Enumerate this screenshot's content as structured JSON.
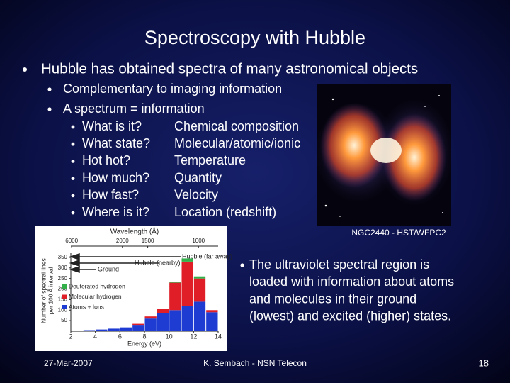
{
  "title": "Spectroscopy with Hubble",
  "bullet": "Hubble has obtained spectra of many astronomical objects",
  "sub_bullets": [
    "Complementary to imaging information",
    "A spectrum = information"
  ],
  "questions": [
    {
      "q": "What is it?",
      "a": "Chemical composition"
    },
    {
      "q": "What state?",
      "a": "Molecular/atomic/ionic"
    },
    {
      "q": "Hot hot?",
      "a": "Temperature"
    },
    {
      "q": "How much?",
      "a": "Quantity"
    },
    {
      "q": "How fast?",
      "a": "Velocity"
    },
    {
      "q": "Where is it?",
      "a": "Location (redshift)"
    }
  ],
  "image_caption": "NGC2440 - HST/WFPC2",
  "side_note": [
    "The ultraviolet spectral region is",
    "loaded with information about atoms",
    "and molecules in their ground",
    "(lowest) and excited (higher) states."
  ],
  "footer": {
    "date": "27-Mar-2007",
    "author": "K. Sembach - NSN Telecon",
    "page": "18"
  },
  "figure": {
    "type": "bar",
    "top_axis_label": "Wavelength (Å)",
    "wavelength_ticks": [
      6000,
      2000,
      1500,
      1000
    ],
    "x_label": "Energy (eV)",
    "y_label": [
      "Number of spectral lines",
      "per 100 Å interval"
    ],
    "annotations": {
      "far": "Hubble (far away)",
      "near": "Hubble (nearby)",
      "ground": "Ground"
    },
    "bins": [
      2,
      3,
      4,
      5,
      6,
      7,
      8,
      9,
      10,
      11,
      12,
      13,
      14
    ],
    "series": [
      {
        "name": "Atoms + Ions",
        "color": "#1e3cd2",
        "values": [
          3,
          5,
          8,
          12,
          18,
          30,
          60,
          85,
          100,
          120,
          140,
          90
        ]
      },
      {
        "name": "Molecular hydrogen",
        "color": "#e01e28",
        "values": [
          0,
          0,
          0,
          0,
          0,
          5,
          10,
          20,
          130,
          210,
          110,
          10
        ]
      },
      {
        "name": "Deuterated hydrogen",
        "color": "#34b04a",
        "values": [
          0,
          0,
          0,
          0,
          0,
          0,
          0,
          0,
          5,
          15,
          10,
          0
        ]
      }
    ],
    "xlim": [
      2,
      14
    ],
    "xticks": [
      2,
      4,
      6,
      8,
      10,
      12,
      14
    ],
    "ylim": [
      0,
      370
    ],
    "yticks": [
      50,
      100,
      150,
      200,
      250,
      300,
      350
    ]
  }
}
